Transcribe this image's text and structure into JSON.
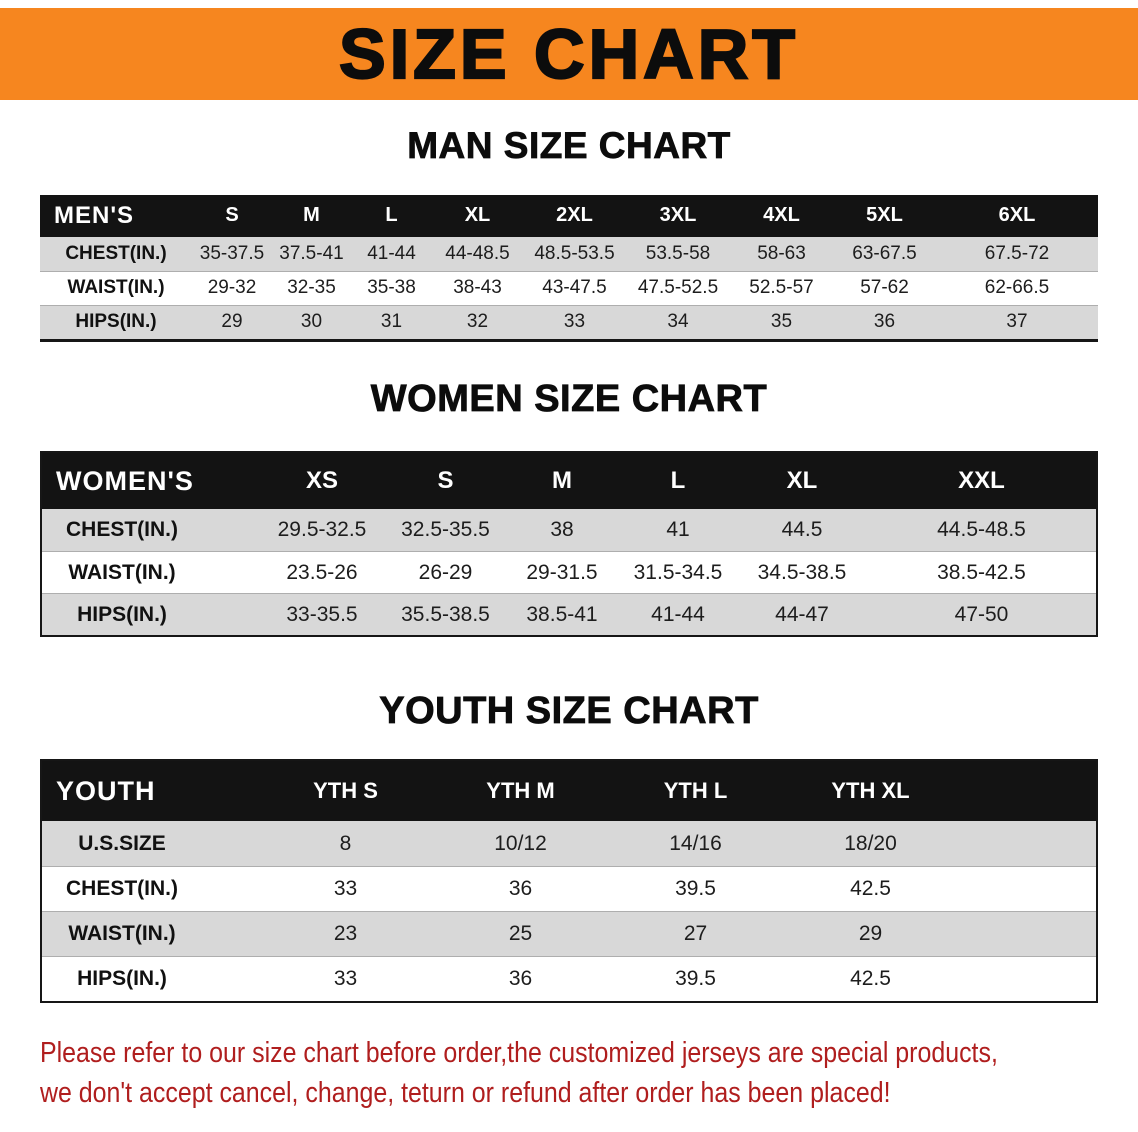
{
  "banner": {
    "title": "SIZE CHART"
  },
  "colors": {
    "banner_bg": "#f6861f",
    "table_header_bg": "#131313",
    "row_stripe_bg": "#d8d8d8",
    "footer_text": "#b01e1e"
  },
  "men": {
    "heading": "MAN SIZE CHART",
    "corner_label": "MEN'S",
    "sizes": [
      "S",
      "M",
      "L",
      "XL",
      "2XL",
      "3XL",
      "4XL",
      "5XL",
      "6XL"
    ],
    "rows": [
      {
        "label": "CHEST(IN.)",
        "values": [
          "35-37.5",
          "37.5-41",
          "41-44",
          "44-48.5",
          "48.5-53.5",
          "53.5-58",
          "58-63",
          "63-67.5",
          "67.5-72"
        ]
      },
      {
        "label": "WAIST(IN.)",
        "values": [
          "29-32",
          "32-35",
          "35-38",
          "38-43",
          "43-47.5",
          "47.5-52.5",
          "52.5-57",
          "57-62",
          "62-66.5"
        ]
      },
      {
        "label": "HIPS(IN.)",
        "values": [
          "29",
          "30",
          "31",
          "32",
          "33",
          "34",
          "35",
          "36",
          "37"
        ]
      }
    ]
  },
  "women": {
    "heading": "WOMEN SIZE CHART",
    "corner_label": "WOMEN'S",
    "sizes": [
      "XS",
      "S",
      "M",
      "L",
      "XL",
      "XXL"
    ],
    "rows": [
      {
        "label": "CHEST(IN.)",
        "values": [
          "29.5-32.5",
          "32.5-35.5",
          "38",
          "41",
          "44.5",
          "44.5-48.5"
        ]
      },
      {
        "label": "WAIST(IN.)",
        "values": [
          "23.5-26",
          "26-29",
          "29-31.5",
          "31.5-34.5",
          "34.5-38.5",
          "38.5-42.5"
        ]
      },
      {
        "label": "HIPS(IN.)",
        "values": [
          "33-35.5",
          "35.5-38.5",
          "38.5-41",
          "41-44",
          "44-47",
          "47-50"
        ]
      }
    ]
  },
  "youth": {
    "heading": "YOUTH SIZE CHART",
    "corner_label": "YOUTH",
    "sizes": [
      "YTH S",
      "YTH M",
      "YTH L",
      "YTH XL"
    ],
    "rows": [
      {
        "label": "U.S.SIZE",
        "values": [
          "8",
          "10/12",
          "14/16",
          "18/20"
        ]
      },
      {
        "label": "CHEST(IN.)",
        "values": [
          "33",
          "36",
          "39.5",
          "42.5"
        ]
      },
      {
        "label": "WAIST(IN.)",
        "values": [
          "23",
          "25",
          "27",
          "29"
        ]
      },
      {
        "label": "HIPS(IN.)",
        "values": [
          "33",
          "36",
          "39.5",
          "42.5"
        ]
      }
    ]
  },
  "footer": {
    "line1": "Please refer to our size chart before order,the customized jerseys are special products,",
    "line2": "we don't accept cancel, change, teturn or refund after order has been placed!"
  }
}
